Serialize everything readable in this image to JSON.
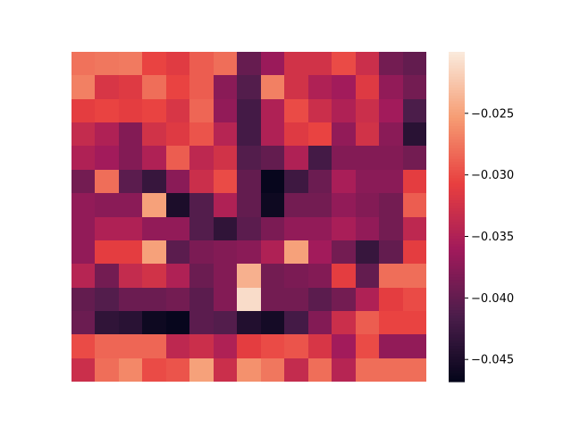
{
  "chart_data": {
    "type": "heatmap",
    "title": "",
    "xlabel": "",
    "ylabel": "",
    "rows": 14,
    "cols": 15,
    "axes_visible": false,
    "grid": false,
    "colormap": "rocket",
    "colormap_stops": [
      "#03051a",
      "#4c1d4b",
      "#a11a5b",
      "#e83f3f",
      "#f69c73",
      "#faebdd"
    ],
    "vmin": -0.0468,
    "vmax": -0.02,
    "colorbar": {
      "position": "right",
      "ticks": [
        -0.025,
        -0.03,
        -0.035,
        -0.04,
        -0.045
      ],
      "tick_labels": [
        "−0.025",
        "−0.030",
        "−0.035",
        "−0.040",
        "−0.045"
      ]
    },
    "values": [
      [
        -0.0278,
        -0.0275,
        -0.0273,
        -0.0305,
        -0.0313,
        -0.029,
        -0.028,
        -0.0398,
        -0.0365,
        -0.0325,
        -0.0325,
        -0.03,
        -0.033,
        -0.039,
        -0.04
      ],
      [
        -0.027,
        -0.032,
        -0.0315,
        -0.028,
        -0.0305,
        -0.029,
        -0.0375,
        -0.041,
        -0.027,
        -0.0325,
        -0.035,
        -0.036,
        -0.0315,
        -0.037,
        -0.039
      ],
      [
        -0.031,
        -0.0305,
        -0.031,
        -0.0305,
        -0.032,
        -0.0285,
        -0.037,
        -0.042,
        -0.035,
        -0.03,
        -0.033,
        -0.035,
        -0.033,
        -0.036,
        -0.0415
      ],
      [
        -0.0335,
        -0.035,
        -0.038,
        -0.0325,
        -0.0315,
        -0.0295,
        -0.0345,
        -0.042,
        -0.035,
        -0.0315,
        -0.0305,
        -0.037,
        -0.0325,
        -0.0375,
        -0.044
      ],
      [
        -0.035,
        -0.036,
        -0.038,
        -0.035,
        -0.029,
        -0.034,
        -0.0325,
        -0.041,
        -0.04,
        -0.035,
        -0.042,
        -0.038,
        -0.038,
        -0.038,
        -0.039
      ],
      [
        -0.039,
        -0.028,
        -0.0405,
        -0.043,
        -0.0375,
        -0.033,
        -0.03,
        -0.04,
        -0.0465,
        -0.0425,
        -0.0395,
        -0.0355,
        -0.0375,
        -0.0375,
        -0.031
      ],
      [
        -0.037,
        -0.0375,
        -0.0375,
        -0.025,
        -0.045,
        -0.041,
        -0.035,
        -0.04,
        -0.046,
        -0.039,
        -0.039,
        -0.037,
        -0.038,
        -0.039,
        -0.029
      ],
      [
        -0.037,
        -0.035,
        -0.035,
        -0.037,
        -0.037,
        -0.041,
        -0.0435,
        -0.0405,
        -0.0385,
        -0.037,
        -0.037,
        -0.0355,
        -0.037,
        -0.039,
        -0.034
      ],
      [
        -0.037,
        -0.031,
        -0.031,
        -0.025,
        -0.0405,
        -0.0385,
        -0.038,
        -0.0375,
        -0.035,
        -0.025,
        -0.036,
        -0.039,
        -0.043,
        -0.04,
        -0.031
      ],
      [
        -0.0345,
        -0.039,
        -0.0335,
        -0.0325,
        -0.035,
        -0.0395,
        -0.038,
        -0.024,
        -0.039,
        -0.0385,
        -0.038,
        -0.031,
        -0.04,
        -0.028,
        -0.028
      ],
      [
        -0.04,
        -0.041,
        -0.0395,
        -0.0395,
        -0.039,
        -0.0405,
        -0.038,
        -0.021,
        -0.039,
        -0.039,
        -0.0405,
        -0.039,
        -0.035,
        -0.031,
        -0.03
      ],
      [
        -0.0395,
        -0.0435,
        -0.044,
        -0.046,
        -0.0465,
        -0.0405,
        -0.041,
        -0.0445,
        -0.0455,
        -0.042,
        -0.038,
        -0.033,
        -0.029,
        -0.0305,
        -0.0305
      ],
      [
        -0.03,
        -0.0285,
        -0.0285,
        -0.0285,
        -0.034,
        -0.033,
        -0.035,
        -0.031,
        -0.03,
        -0.0295,
        -0.032,
        -0.036,
        -0.03,
        -0.037,
        -0.037
      ],
      [
        -0.033,
        -0.028,
        -0.0265,
        -0.03,
        -0.0295,
        -0.025,
        -0.033,
        -0.026,
        -0.0275,
        -0.0335,
        -0.028,
        -0.0345,
        -0.028,
        -0.028,
        -0.028
      ]
    ]
  }
}
